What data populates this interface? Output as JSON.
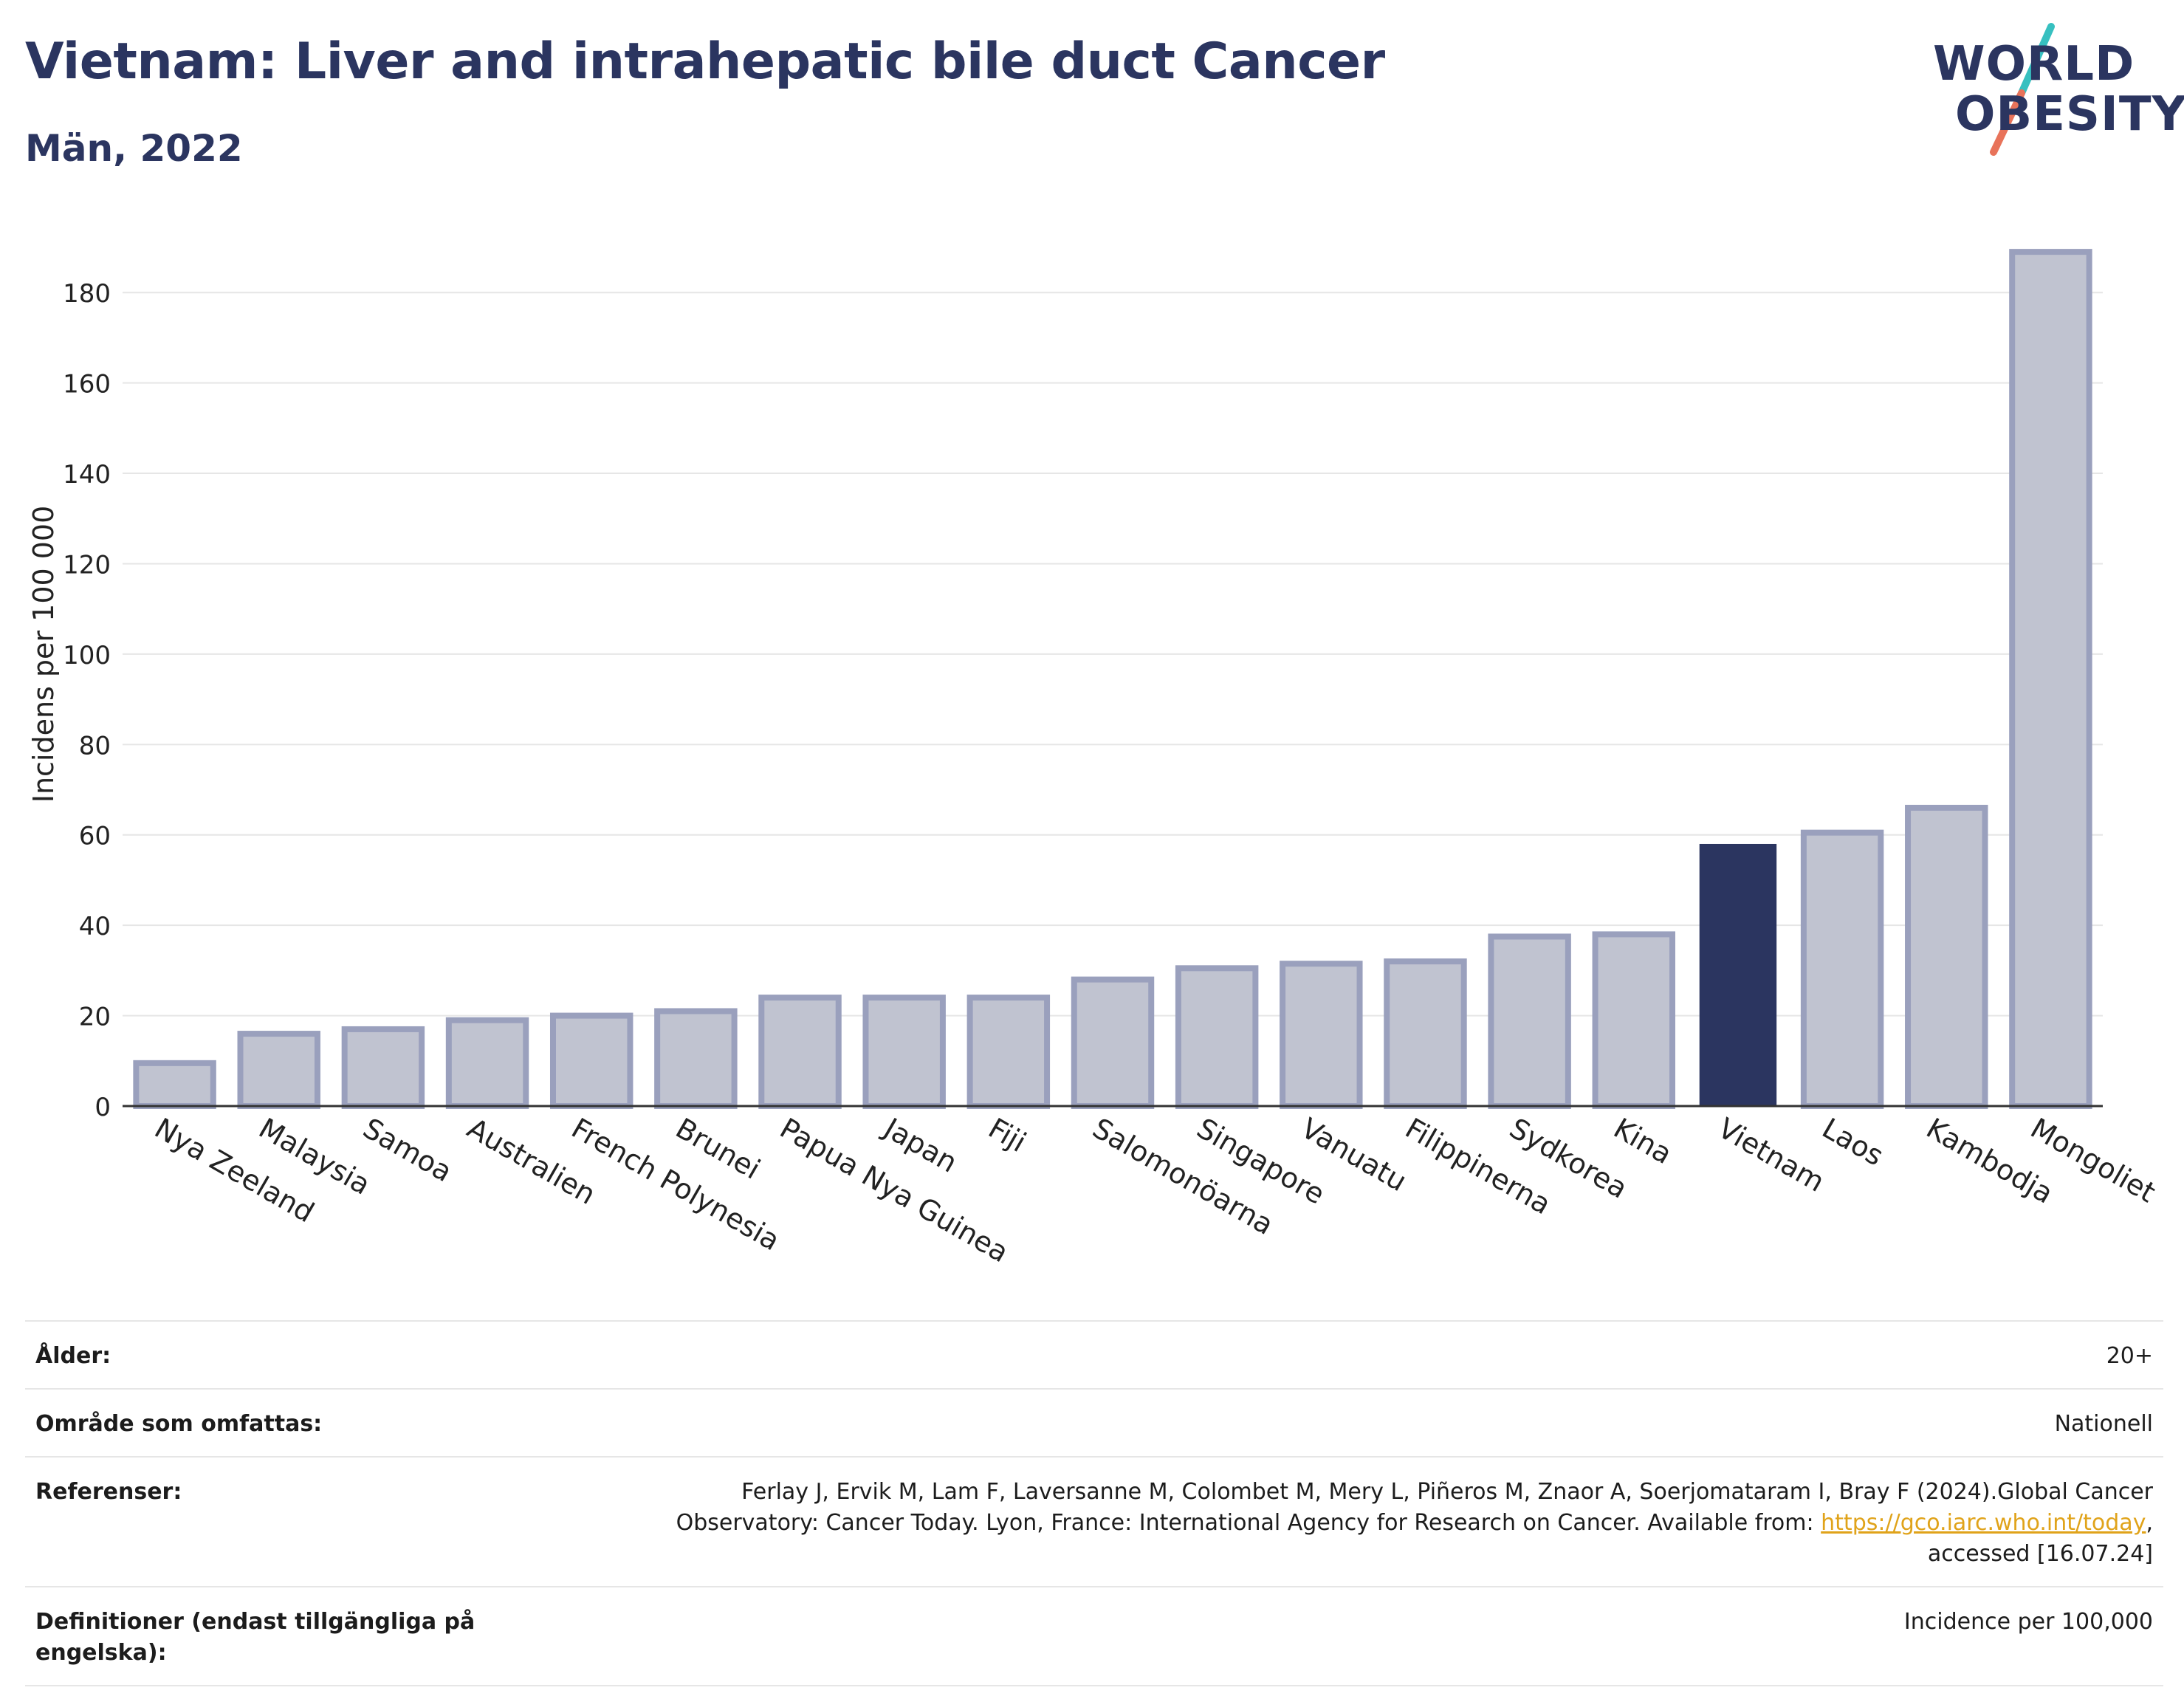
{
  "header": {
    "title": "Vietnam: Liver and intrahepatic bile duct Cancer",
    "subtitle": "Män, 2022"
  },
  "logo": {
    "line1": "WORLD",
    "line2": "OBESITY",
    "colors": [
      "#37c0c0",
      "#e8735a"
    ]
  },
  "chart_data": {
    "type": "bar",
    "ylabel": "Incidens per 100 000",
    "xlabel": "",
    "ylim": [
      0,
      190
    ],
    "yticks": [
      0,
      20,
      40,
      60,
      80,
      100,
      120,
      140,
      160,
      180
    ],
    "grid": true,
    "highlight": "Vietnam",
    "colors": {
      "bar": "#c0c3d0",
      "bar_edge": "#9aa0bd",
      "highlight": "#2b3560"
    },
    "categories": [
      "Nya Zeeland",
      "Malaysia",
      "Samoa",
      "Australien",
      "French Polynesia",
      "Brunei",
      "Papua Nya Guinea",
      "Japan",
      "Fiji",
      "Salomonöarna",
      "Singapore",
      "Vanuatu",
      "Filippinerna",
      "Sydkorea",
      "Kina",
      "Vietnam",
      "Laos",
      "Kambodja",
      "Mongoliet"
    ],
    "values": [
      9.5,
      16,
      17,
      19,
      20,
      21,
      24,
      24,
      24,
      28,
      30.5,
      31.5,
      32,
      37.5,
      38,
      58,
      60.5,
      66,
      189
    ]
  },
  "info": {
    "rows": [
      {
        "label": "Ålder:",
        "value": "20+"
      },
      {
        "label": "Område som omfattas:",
        "value": "Nationell"
      },
      {
        "label": "Referenser:",
        "value_pre": "Ferlay J, Ervik M, Lam F, Laversanne M, Colombet M, Mery L, Piñeros M, Znaor A, Soerjomataram I, Bray F (2024).Global Cancer Observatory: Cancer Today. Lyon, France: International Agency for Research on Cancer. Available from: ",
        "link": "https://gco.iarc.who.int/today",
        "value_post": ", accessed [16.07.24]"
      },
      {
        "label": "Definitioner (endast tillgängliga på engelska):",
        "value": "Incidence per 100,000"
      }
    ]
  }
}
